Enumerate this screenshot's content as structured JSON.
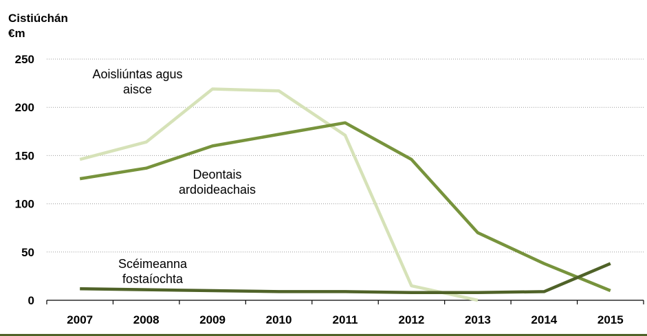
{
  "chart_data": {
    "type": "line",
    "ylabel_lines": [
      "Cistiúchán",
      "€m"
    ],
    "x": [
      "2007",
      "2008",
      "2009",
      "2010",
      "2011",
      "2012",
      "2013",
      "2014",
      "2015"
    ],
    "yticks": [
      0,
      50,
      100,
      150,
      200,
      250
    ],
    "ylim": [
      0,
      250
    ],
    "grid": true,
    "series": [
      {
        "name_lines": [
          "Aoisliúntas agus",
          "aisce"
        ],
        "color": "#d6e2b8",
        "values": [
          146,
          164,
          219,
          217,
          171,
          15,
          0,
          null,
          null
        ]
      },
      {
        "name_lines": [
          "Deontais",
          "ardoideachais"
        ],
        "color": "#77933c",
        "values": [
          126,
          137,
          160,
          172,
          184,
          146,
          70,
          38,
          10
        ]
      },
      {
        "name_lines": [
          "Scéimeanna",
          "fostaíochta"
        ],
        "color": "#4f6228",
        "values": [
          12,
          11,
          10,
          9,
          9,
          8,
          8,
          9,
          38
        ]
      }
    ]
  },
  "colors": {
    "bottom_rule": "#4f6228"
  }
}
